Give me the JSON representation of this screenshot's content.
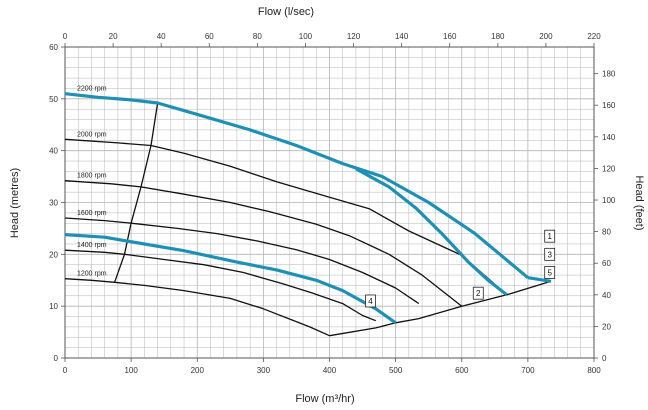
{
  "chart_data": {
    "type": "line",
    "x_primary": {
      "label": "Flow (m³/hr)",
      "min": 0,
      "max": 800,
      "ticks": [
        0,
        100,
        200,
        300,
        400,
        500,
        600,
        700,
        800
      ]
    },
    "x_secondary": {
      "label": "Flow (l/sec)",
      "min": 0,
      "max": 220,
      "ticks": [
        0,
        20,
        40,
        60,
        80,
        100,
        120,
        140,
        160,
        180,
        200,
        220
      ]
    },
    "y_primary": {
      "label": "Head (metres)",
      "min": 0,
      "max": 60,
      "ticks": [
        0,
        10,
        20,
        30,
        40,
        50,
        60
      ]
    },
    "y_secondary": {
      "label": "Head (feet)",
      "min": 0,
      "max": 196.85,
      "ticks": [
        0,
        20,
        40,
        60,
        80,
        100,
        120,
        140,
        160,
        180
      ]
    },
    "grid": true,
    "colors": {
      "black": "#111111",
      "highlight": "#1e90b4",
      "grid": "#b4b4b4"
    },
    "speed_curves": [
      {
        "name": "2200 rpm",
        "label": "2200 rpm",
        "points": [
          [
            0,
            51
          ],
          [
            50,
            50.3
          ],
          [
            100,
            49.8
          ],
          [
            140,
            49.2
          ],
          [
            200,
            47
          ],
          [
            280,
            44
          ],
          [
            350,
            41
          ],
          [
            420,
            37.5
          ],
          [
            480,
            35
          ],
          [
            550,
            30
          ],
          [
            620,
            24
          ],
          [
            700,
            15.5
          ]
        ]
      },
      {
        "name": "2000 rpm",
        "label": "2000 rpm",
        "points": [
          [
            0,
            42.2
          ],
          [
            80,
            41.5
          ],
          [
            130,
            41
          ],
          [
            180,
            39.5
          ],
          [
            250,
            37
          ],
          [
            320,
            34
          ],
          [
            400,
            31
          ],
          [
            460,
            28.8
          ],
          [
            520,
            24.5
          ],
          [
            600,
            19.8
          ],
          [
            668,
            12.2
          ]
        ]
      },
      {
        "name": "1800 rpm",
        "label": "1800 rpm",
        "points": [
          [
            0,
            34.2
          ],
          [
            70,
            33.6
          ],
          [
            115,
            33
          ],
          [
            180,
            31.6
          ],
          [
            250,
            30
          ],
          [
            310,
            28.2
          ],
          [
            380,
            25.8
          ],
          [
            430,
            23.6
          ],
          [
            490,
            20
          ],
          [
            540,
            16
          ],
          [
            600,
            10
          ]
        ]
      },
      {
        "name": "1600 rpm",
        "label": "1600 rpm",
        "points": [
          [
            0,
            27
          ],
          [
            60,
            26.5
          ],
          [
            100,
            26
          ],
          [
            170,
            25
          ],
          [
            230,
            24
          ],
          [
            290,
            22.6
          ],
          [
            350,
            20.9
          ],
          [
            400,
            19
          ],
          [
            450,
            16.5
          ],
          [
            500,
            13.5
          ],
          [
            535,
            10.5
          ]
        ]
      },
      {
        "name": "1400 rpm",
        "label": "1400 rpm",
        "points": [
          [
            0,
            20.8
          ],
          [
            60,
            20.4
          ],
          [
            90,
            20
          ],
          [
            150,
            19
          ],
          [
            210,
            18
          ],
          [
            270,
            16.5
          ],
          [
            330,
            14.3
          ],
          [
            375,
            12.5
          ],
          [
            420,
            10.5
          ],
          [
            450,
            8.2
          ],
          [
            470,
            7.2
          ]
        ]
      },
      {
        "name": "1200 rpm",
        "label": "1200 rpm",
        "points": [
          [
            0,
            15.3
          ],
          [
            40,
            15
          ],
          [
            75,
            14.6
          ],
          [
            120,
            14
          ],
          [
            180,
            13
          ],
          [
            250,
            11.5
          ],
          [
            300,
            9.5
          ],
          [
            340,
            7.5
          ],
          [
            370,
            6
          ],
          [
            400,
            4.3
          ]
        ]
      }
    ],
    "impeller_curves": [
      {
        "points": [
          [
            0,
            23.8
          ],
          [
            60,
            23.3
          ],
          [
            120,
            22
          ],
          [
            180,
            20.7
          ],
          [
            260,
            18.5
          ],
          [
            320,
            17
          ],
          [
            380,
            15
          ],
          [
            420,
            13
          ],
          [
            470,
            9.5
          ],
          [
            500,
            6.8
          ]
        ]
      },
      {
        "points": [
          [
            440,
            36.5
          ],
          [
            490,
            33
          ],
          [
            530,
            29
          ],
          [
            570,
            24
          ],
          [
            610,
            18.5
          ],
          [
            640,
            15
          ],
          [
            668,
            12.2
          ]
        ]
      },
      {
        "points": [
          [
            700,
            15.5
          ],
          [
            735,
            14.8
          ]
        ]
      }
    ],
    "efficiency_curve": {
      "points": [
        [
          75,
          14.6
        ],
        [
          90,
          20
        ],
        [
          100,
          26
        ],
        [
          115,
          33
        ],
        [
          130,
          41
        ],
        [
          140,
          49.2
        ],
        [
          136,
          49.4
        ]
      ]
    },
    "boundary_curve": {
      "points": [
        [
          400,
          4.3
        ],
        [
          470,
          5.8
        ],
        [
          500,
          6.8
        ],
        [
          535,
          7.6
        ],
        [
          600,
          10
        ],
        [
          668,
          12.2
        ],
        [
          735,
          14.8
        ]
      ]
    },
    "boxes": [
      {
        "label": "1",
        "x": 733,
        "y": 23.5
      },
      {
        "label": "3",
        "x": 733,
        "y": 20
      },
      {
        "label": "5",
        "x": 733,
        "y": 16.5
      },
      {
        "label": "2",
        "x": 625,
        "y": 12.5
      },
      {
        "label": "4",
        "x": 462,
        "y": 11
      }
    ]
  }
}
